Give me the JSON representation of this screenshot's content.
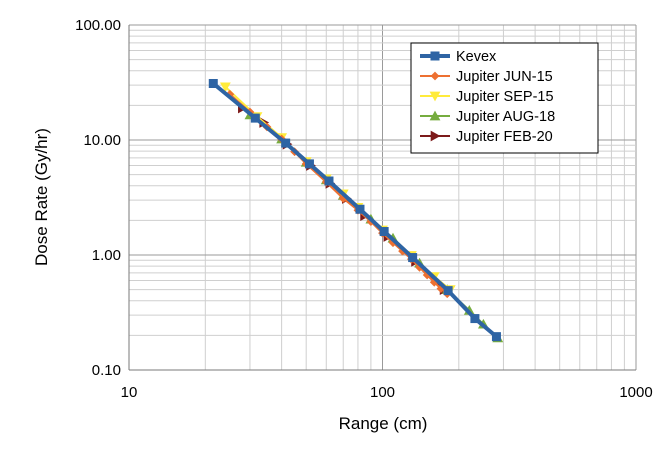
{
  "chart_data": {
    "type": "line",
    "xscale": "log",
    "yscale": "log",
    "xlim": [
      10,
      1000
    ],
    "ylim": [
      0.1,
      100
    ],
    "xlabel": "Range (cm)",
    "ylabel": "Dose Rate (Gy/hr)",
    "x_ticks": [
      "10",
      "100",
      "1000"
    ],
    "y_ticks": [
      "0.10",
      "1.00",
      "10.00",
      "100.00"
    ],
    "grid": true,
    "legend_position": "top-right",
    "series": [
      {
        "name": "Kevex",
        "color": "#2e64a4",
        "marker": "square",
        "x": [
          21.5,
          31.5,
          41.5,
          51.5,
          61.5,
          81.5,
          101.5,
          131.5,
          181.5,
          231.5,
          281.5
        ],
        "y": [
          31,
          15.5,
          9.4,
          6.2,
          4.4,
          2.5,
          1.6,
          0.95,
          0.49,
          0.28,
          0.195
        ]
      },
      {
        "name": "Jupiter JUN-15",
        "color": "#ed7031",
        "marker": "diamond",
        "x": [
          25,
          30,
          35,
          40,
          45,
          50,
          60,
          70,
          80,
          90,
          100,
          110,
          120,
          130,
          140,
          150,
          160,
          170,
          180
        ],
        "y": [
          25,
          17.5,
          13,
          10.2,
          7.9,
          6.2,
          4.3,
          3.1,
          2.45,
          1.95,
          1.55,
          1.28,
          1.08,
          0.92,
          0.78,
          0.67,
          0.58,
          0.51,
          0.46
        ]
      },
      {
        "name": "Jupiter SEP-15",
        "color": "#ffeb3b",
        "marker": "triangle-down",
        "x": [
          24,
          32,
          40,
          50,
          60,
          70,
          80,
          100,
          130,
          160,
          185
        ],
        "y": [
          29,
          16,
          10.5,
          6.5,
          4.6,
          3.4,
          2.6,
          1.65,
          0.99,
          0.65,
          0.5
        ]
      },
      {
        "name": "Jupiter AUG-18",
        "color": "#76ac3f",
        "marker": "triangle-up",
        "x": [
          30,
          40,
          50,
          60,
          70,
          90,
          110,
          140,
          180,
          220,
          250,
          285
        ],
        "y": [
          16.5,
          10.2,
          6.4,
          4.5,
          3.3,
          2.05,
          1.4,
          0.85,
          0.5,
          0.33,
          0.25,
          0.19
        ]
      },
      {
        "name": "Jupiter FEB-20",
        "color": "#7c1a1a",
        "marker": "triangle-right",
        "x": [
          28,
          34,
          42,
          52,
          62,
          72,
          85,
          105,
          135,
          175
        ],
        "y": [
          19,
          14.2,
          9.2,
          6,
          4.2,
          3.1,
          2.2,
          1.45,
          0.88,
          0.5
        ]
      }
    ]
  }
}
